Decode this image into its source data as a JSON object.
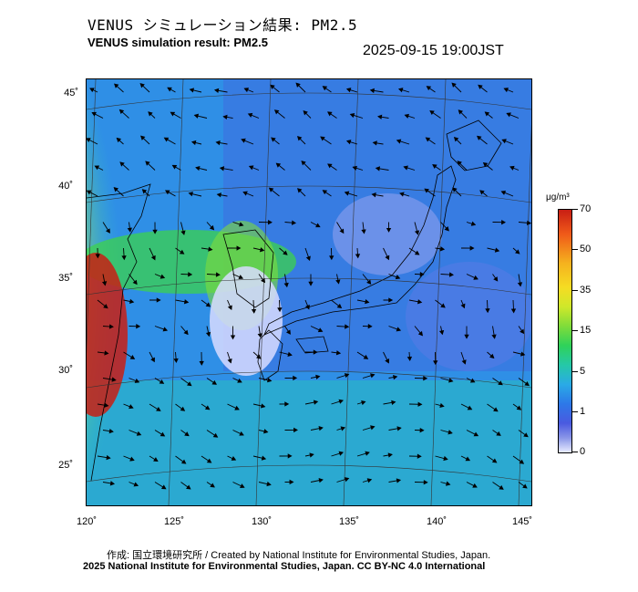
{
  "header": {
    "title_ja": "VENUS シミュレーション結果: PM2.5",
    "title_en": "VENUS simulation result: PM2.5",
    "timestamp": "2025-09-15 19:00JST"
  },
  "map": {
    "region": "East Asia / Japan",
    "lat_labels": [
      "45˚",
      "40˚",
      "35˚",
      "30˚",
      "25˚"
    ],
    "lon_labels": [
      "120˚",
      "125˚",
      "130˚",
      "135˚",
      "140˚",
      "145˚"
    ],
    "field": "PM2.5 concentration with wind vectors",
    "high_concentration_regions": [
      "eastern China coast",
      "Yellow Sea coast",
      "Korean peninsula west coast"
    ]
  },
  "colorbar": {
    "unit": "μg/m³",
    "ticks": [
      "70",
      "50",
      "35",
      "15",
      "5",
      "1",
      "0"
    ],
    "colors": [
      "#c81e14",
      "#f5b21e",
      "#f5dc23",
      "#2fd25a",
      "#2aaae6",
      "#4a5ae0",
      "#e8ecff"
    ]
  },
  "footer": {
    "credit_1": "作成: 国立環境研究所 / Created by National Institute for Environmental Studies, Japan.",
    "credit_2": "2025 National Institute for Environmental Studies, Japan. CC BY-NC 4.0 International"
  }
}
